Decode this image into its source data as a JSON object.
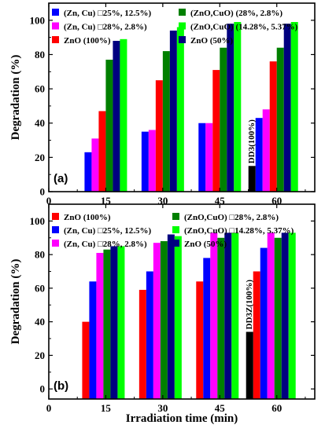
{
  "chart_data": [
    {
      "type": "bar",
      "panel_label": "(a)",
      "ylabel": "Degradation (%)",
      "xlabel": "",
      "xlim": [
        0,
        70
      ],
      "ylim": [
        0,
        110
      ],
      "x_ticks": [
        "0",
        "15",
        "30",
        "45",
        "60"
      ],
      "y_ticks": [
        "0",
        "20",
        "40",
        "60",
        "80",
        "100"
      ],
      "categories": [
        15,
        30,
        45,
        60
      ],
      "series": [
        {
          "name": "DD3(100%)",
          "color": "#000000",
          "values": [
            null,
            null,
            null,
            15
          ]
        },
        {
          "name": "ZnO (100%)",
          "color": "#ff0000",
          "values": [
            null,
            null,
            null,
            76
          ]
        },
        {
          "name": "(Zn, Cu) □25%, 12.5%)",
          "color": "#0000ff",
          "values": [
            23,
            35,
            40,
            43
          ]
        },
        {
          "name": "(Zn, Cu) □28%, 2.8%)",
          "color": "#ff00ff",
          "values": [
            31,
            36,
            40,
            48
          ]
        },
        {
          "name": "ZnO (100%)",
          "color": "#ff0000",
          "values": [
            47,
            65,
            71,
            76
          ]
        },
        {
          "name": "(ZnO,CuO) (28%, 2.8%)",
          "color": "#008000",
          "values": [
            77,
            82,
            84,
            84
          ]
        },
        {
          "name": "ZnO (50%)",
          "color": "#000080",
          "values": [
            88,
            94,
            98,
            98
          ]
        },
        {
          "name": "(ZnO,CuO) (14.28%, 5.37%)",
          "color": "#00ff00",
          "values": [
            89,
            96,
            99,
            99
          ]
        }
      ],
      "annotation": "DD3(100%)",
      "legend": [
        {
          "label": "(Zn, Cu) □25%, 12.5%)",
          "color": "#0000ff"
        },
        {
          "label": "(ZnO,CuO) (28%, 2.8%)",
          "color": "#008000"
        },
        {
          "label": "(Zn, Cu) □28%, 2.8%)",
          "color": "#ff00ff"
        },
        {
          "label": "(ZnO,CuO) (14.28%, 5.37%)",
          "color": "#00ff00"
        },
        {
          "label": "ZnO (100%)",
          "color": "#ff0000"
        },
        {
          "label": "ZnO (50%)",
          "color": "#000080"
        }
      ]
    },
    {
      "type": "bar",
      "panel_label": "(b)",
      "ylabel": "Degradation (%)",
      "xlabel": "Irradiation time (min)",
      "xlim": [
        0,
        70
      ],
      "ylim": [
        -6,
        110
      ],
      "x_ticks": [
        "0",
        "15",
        "30",
        "45",
        "60"
      ],
      "y_ticks": [
        "0",
        "20",
        "40",
        "60",
        "80",
        "100"
      ],
      "categories": [
        15,
        30,
        45,
        60
      ],
      "series": [
        {
          "name": "DD3Z(100%)",
          "color": "#000000",
          "values": [
            null,
            null,
            null,
            34
          ]
        },
        {
          "name": "ZnO (100%)",
          "color": "#ff0000",
          "values": [
            40,
            59,
            64,
            70
          ]
        },
        {
          "name": "(Zn, Cu) □25%, 12.5%)",
          "color": "#0000ff",
          "values": [
            64,
            70,
            78,
            84
          ]
        },
        {
          "name": "(Zn, Cu) □28%, 2.8%)",
          "color": "#ff00ff",
          "values": [
            81,
            87,
            93,
            93
          ]
        },
        {
          "name": "(ZnO,CuO) □28%, 2.8%)",
          "color": "#008000",
          "values": [
            83,
            88,
            90,
            90
          ]
        },
        {
          "name": "ZnO (50%)",
          "color": "#000080",
          "values": [
            85,
            92,
            93,
            93
          ]
        },
        {
          "name": "(ZnO,CuO) □14.28%, 5.37%)",
          "color": "#00ff00",
          "values": [
            85,
            91,
            93,
            93
          ]
        }
      ],
      "annotation": "DD3Z(100%)",
      "legend": [
        {
          "label": "ZnO (100%)",
          "color": "#ff0000"
        },
        {
          "label": "(ZnO,CuO) □28%, 2.8%)",
          "color": "#008000"
        },
        {
          "label": "(Zn, Cu) □25%, 12.5%)",
          "color": "#0000ff"
        },
        {
          "label": "(ZnO,CuO) □14.28%, 5.37%)",
          "color": "#00ff00"
        },
        {
          "label": "(Zn, Cu) □28%, 2.8%)",
          "color": "#ff00ff"
        },
        {
          "label": "ZnO (50%)",
          "color": "#000080"
        }
      ]
    }
  ]
}
